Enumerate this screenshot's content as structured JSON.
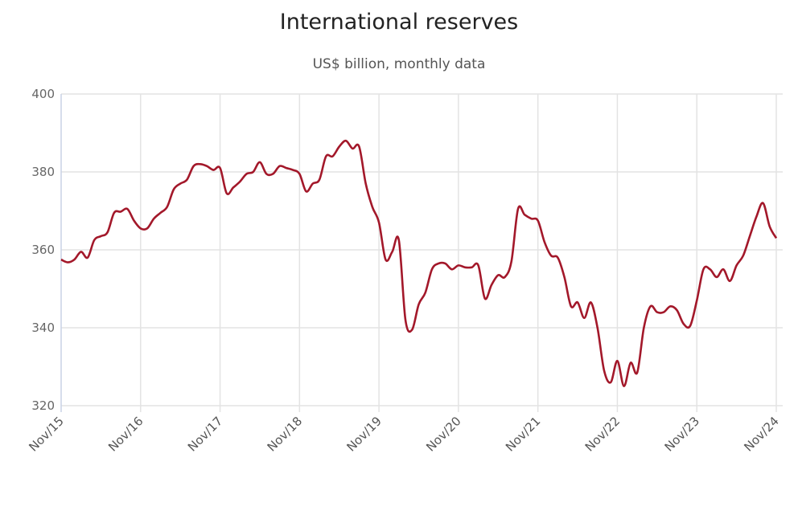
{
  "chart_data": {
    "type": "line",
    "title": "International reserves",
    "subtitle": "US$ billion, monthly data",
    "xlabel": "",
    "ylabel": "",
    "ylim": [
      320,
      400
    ],
    "yticks": [
      320,
      340,
      360,
      380,
      400
    ],
    "xtick_labels": [
      "Nov/15",
      "Nov/16",
      "Nov/17",
      "Nov/18",
      "Nov/19",
      "Nov/20",
      "Nov/21",
      "Nov/22",
      "Nov/23",
      "Nov/24"
    ],
    "x_start": "Nov/15",
    "x_end": "Nov/24",
    "grid": true,
    "line_color": "#a3182a",
    "series": [
      {
        "name": "International reserves",
        "values": [
          357.5,
          356.8,
          357.5,
          359.5,
          358,
          362.5,
          363.5,
          364.5,
          369.5,
          369.8,
          370.5,
          367.5,
          365.5,
          365.5,
          368,
          369.5,
          371,
          375.5,
          377,
          378,
          381.5,
          382,
          381.5,
          380.5,
          381,
          374.5,
          376,
          377.5,
          379.5,
          380,
          382.5,
          379.5,
          379.5,
          381.5,
          381,
          380.5,
          379.5,
          375,
          377,
          378,
          384,
          384,
          386.5,
          388,
          386,
          386.5,
          377,
          371,
          367,
          357.5,
          359.5,
          362.5,
          342,
          339.5,
          346,
          349,
          355,
          356.5,
          356.5,
          355,
          356,
          355.5,
          355.5,
          356,
          347.5,
          351,
          353.5,
          353,
          357,
          370.5,
          369,
          368,
          367.5,
          362,
          358.5,
          358,
          353,
          345.5,
          346.5,
          342.5,
          346.5,
          340,
          329,
          326,
          331.5,
          325,
          331,
          328.5,
          340,
          345.5,
          344,
          344,
          345.5,
          344.5,
          341,
          340.5,
          347,
          355,
          355,
          353,
          355,
          352,
          356,
          358.5,
          363.5,
          368.5,
          372,
          366,
          363
        ]
      }
    ]
  }
}
